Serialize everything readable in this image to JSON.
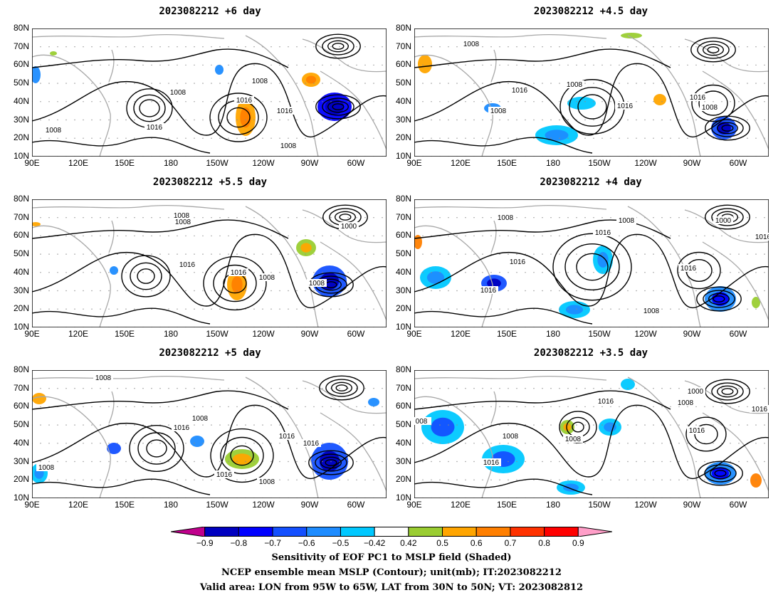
{
  "panels": [
    {
      "title": "2023082212  +6 day",
      "isobar_labels": [
        "1008",
        "1008",
        "1016",
        "1016",
        "1016",
        "1008",
        "1008"
      ]
    },
    {
      "title": "2023082212  +4.5 day",
      "isobar_labels": [
        "1008",
        "1016",
        "1008",
        "1008",
        "1016",
        "1016",
        "1008"
      ]
    },
    {
      "title": "2023082212  +5.5 day",
      "isobar_labels": [
        "1008",
        "1008",
        "1016",
        "1016",
        "1008",
        "1008",
        "1000"
      ]
    },
    {
      "title": "2023082212  +4 day",
      "isobar_labels": [
        "1008",
        "1016",
        "1008",
        "1016",
        "1016",
        "1008",
        "1016",
        "1000",
        "1016"
      ]
    },
    {
      "title": "2023082212  +5 day",
      "isobar_labels": [
        "1008",
        "1016",
        "1008",
        "1016",
        "1016",
        "1008",
        "1016",
        "1008"
      ]
    },
    {
      "title": "2023082212  +3.5 day",
      "isobar_labels": [
        "008",
        "1016",
        "1008",
        "1008",
        "1016",
        "1000",
        "1008",
        "1016",
        "1016"
      ]
    }
  ],
  "axes": {
    "lat_labels": [
      "80N",
      "70N",
      "60N",
      "50N",
      "40N",
      "30N",
      "20N",
      "10N"
    ],
    "lon_labels": [
      "90E",
      "120E",
      "150E",
      "180",
      "150W",
      "120W",
      "90W",
      "60W"
    ]
  },
  "colorbar": {
    "labels": [
      "−0.9",
      "−0.8",
      "−0.7",
      "−0.6",
      "−0.5",
      "−0.42",
      "0.42",
      "0.5",
      "0.6",
      "0.7",
      "0.8",
      "0.9"
    ],
    "colors": [
      "#c0008c",
      "#0000c0",
      "#0000ff",
      "#1450ff",
      "#1e8cff",
      "#00c8ff",
      "#ffffff",
      "#9acd32",
      "#ffa500",
      "#ff7f00",
      "#ff3200",
      "#ff0000",
      "#ff9ec8"
    ]
  },
  "caption": {
    "line1": "Sensitivity of EOF PC1 to MSLP field (Shaded)",
    "line2": "NCEP ensemble mean MSLP (Contour); unit(mb); IT:2023082212",
    "line3": "Valid area: LON from 95W to 65W, LAT from 30N to 50N; VT: 2023082812"
  }
}
